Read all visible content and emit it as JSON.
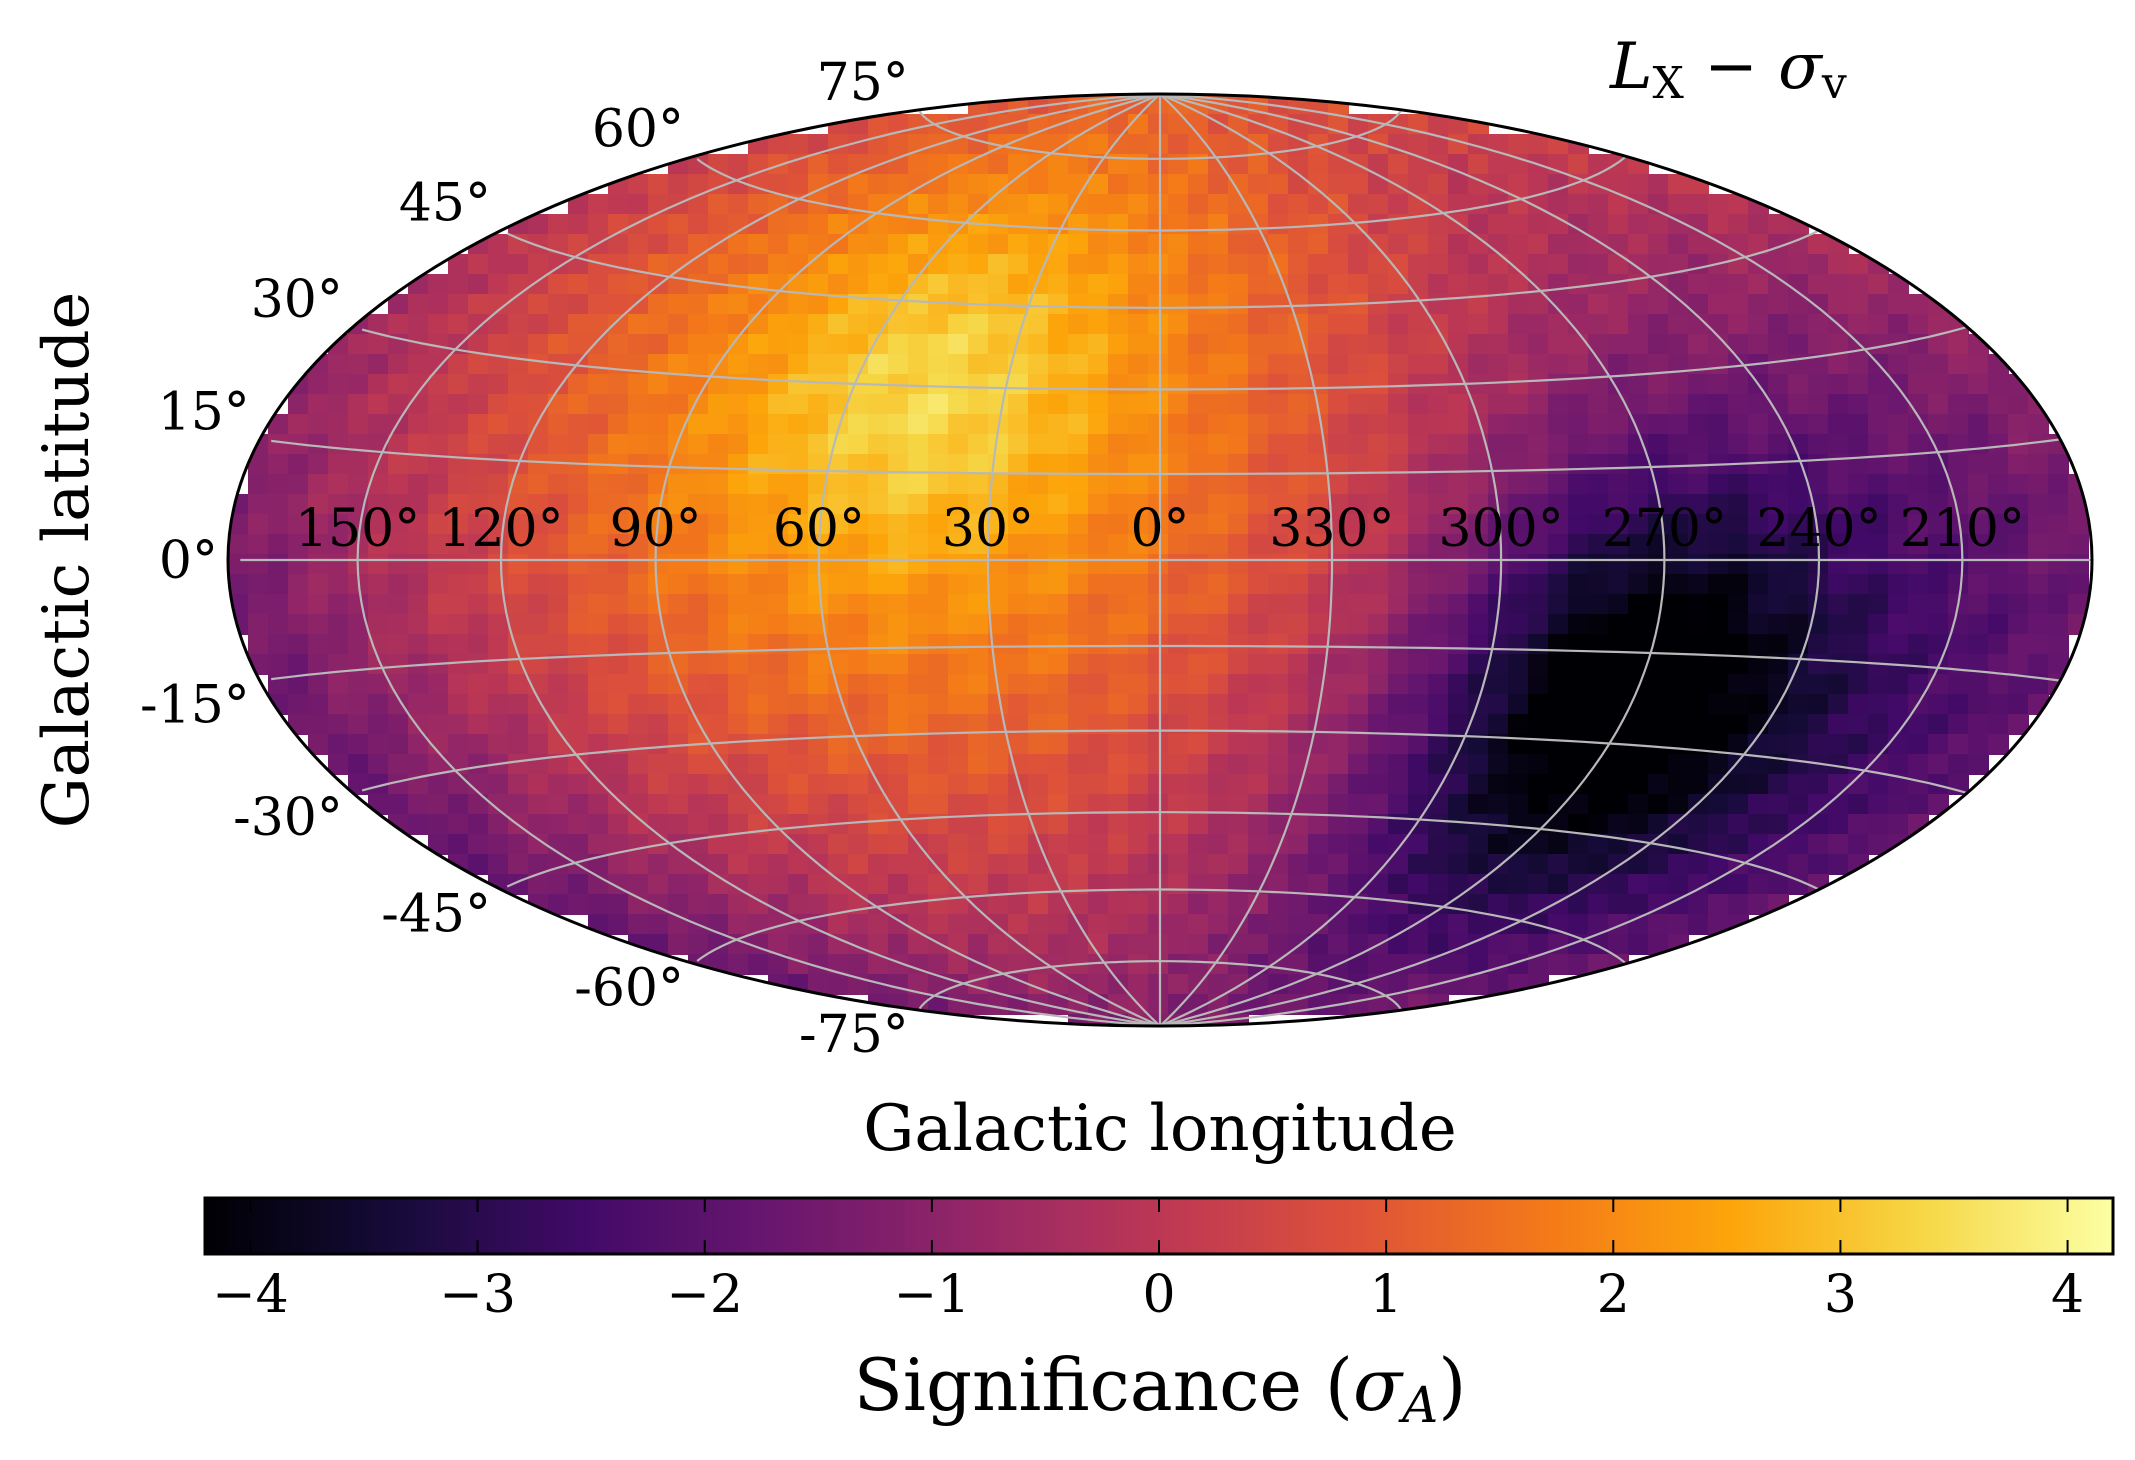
{
  "chart_data": {
    "type": "heatmap",
    "projection": "hammer-aitoff",
    "title": "L_X − σ_v",
    "title_parts": {
      "main": "L",
      "sub1": "X",
      "minus": " − σ",
      "sub2": "v"
    },
    "xlabel": "Galactic longitude",
    "ylabel": "Galactic latitude",
    "lon_tick_labels": [
      "150°",
      "120°",
      "90°",
      "60°",
      "30°",
      "0°",
      "330°",
      "300°",
      "270°",
      "240°",
      "210°"
    ],
    "lon_tick_values": [
      150,
      120,
      90,
      60,
      30,
      0,
      330,
      300,
      270,
      240,
      210
    ],
    "lat_tick_labels": [
      "75°",
      "60°",
      "45°",
      "30°",
      "15°",
      "0°",
      "-15°",
      "-30°",
      "-45°",
      "-60°",
      "-75°"
    ],
    "lat_tick_values": [
      75,
      60,
      45,
      30,
      15,
      0,
      -15,
      -30,
      -45,
      -60,
      -75
    ],
    "grid": true,
    "significance_peaks": [
      {
        "lon": 80,
        "lat": 25,
        "value": 3.0
      },
      {
        "lon": 0,
        "lat": 40,
        "value": 2.1
      },
      {
        "lon": 0,
        "lat": 0,
        "value": 1.3
      },
      {
        "lon": 270,
        "lat": -20,
        "value": -4.0
      },
      {
        "lon": 130,
        "lat": -40,
        "value": -1.3
      },
      {
        "lon": 0,
        "lat": -70,
        "value": -1.8
      }
    ],
    "colorbar": {
      "cmap": "inferno",
      "label": "Significance (σ_A)",
      "label_main": "Significance (",
      "label_sym": "σ",
      "label_sub": "A",
      "label_end": ")",
      "range": [
        -4.2,
        4.2
      ],
      "ticks": [
        -4,
        -3,
        -2,
        -1,
        0,
        1,
        2,
        3,
        4
      ],
      "tick_labels": [
        "−4",
        "−3",
        "−2",
        "−1",
        "0",
        "1",
        "2",
        "3",
        "4"
      ]
    }
  }
}
